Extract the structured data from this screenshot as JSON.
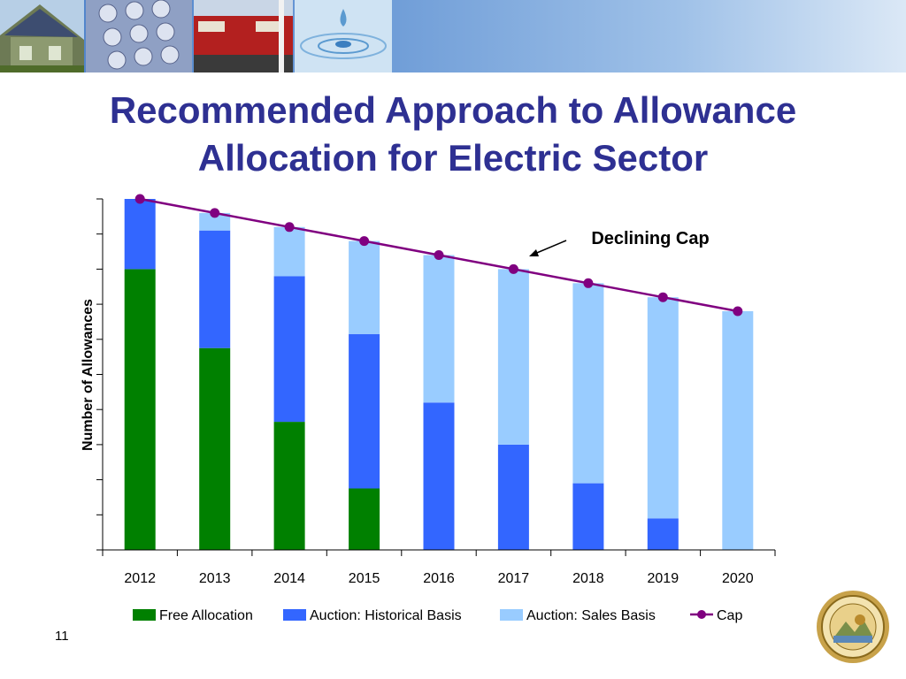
{
  "slide": {
    "title_line1": "Recommended Approach to Allowance",
    "title_line2": "Allocation for Electric Sector",
    "page_number": "11",
    "annotation": "Declining Cap"
  },
  "colors": {
    "title": "#2e3092",
    "free_allocation": "#008000",
    "auction_historical": "#3366ff",
    "auction_sales": "#99ccff",
    "cap": "#800080"
  },
  "chart_data": {
    "type": "bar",
    "stacked": true,
    "title": "",
    "xlabel": "",
    "ylabel": "Number of Allowances",
    "y_tick_labels_shown": false,
    "categories": [
      "2012",
      "2013",
      "2014",
      "2015",
      "2016",
      "2017",
      "2018",
      "2019",
      "2020"
    ],
    "series": [
      {
        "name": "Free Allocation",
        "type": "bar",
        "color": "#008000",
        "values": [
          80,
          57.5,
          36.5,
          17.5,
          0,
          0,
          0,
          0,
          0
        ]
      },
      {
        "name": "Auction: Historical Basis",
        "type": "bar",
        "color": "#3366ff",
        "values": [
          20,
          33.5,
          41.5,
          44,
          42,
          30,
          19,
          9,
          0
        ]
      },
      {
        "name": "Auction: Sales Basis",
        "type": "bar",
        "color": "#99ccff",
        "values": [
          0,
          5,
          14,
          26.5,
          42,
          50,
          57,
          63,
          68
        ]
      },
      {
        "name": "Cap",
        "type": "line",
        "color": "#800080",
        "values": [
          100,
          96,
          92,
          88,
          84,
          80,
          76,
          72,
          68
        ]
      }
    ],
    "ylim": [
      0,
      100
    ],
    "y_ticks": 10,
    "grid": false,
    "legend_position": "bottom",
    "annotations": [
      {
        "text": "Declining Cap",
        "points_to": "Cap",
        "category": "2017"
      }
    ]
  }
}
